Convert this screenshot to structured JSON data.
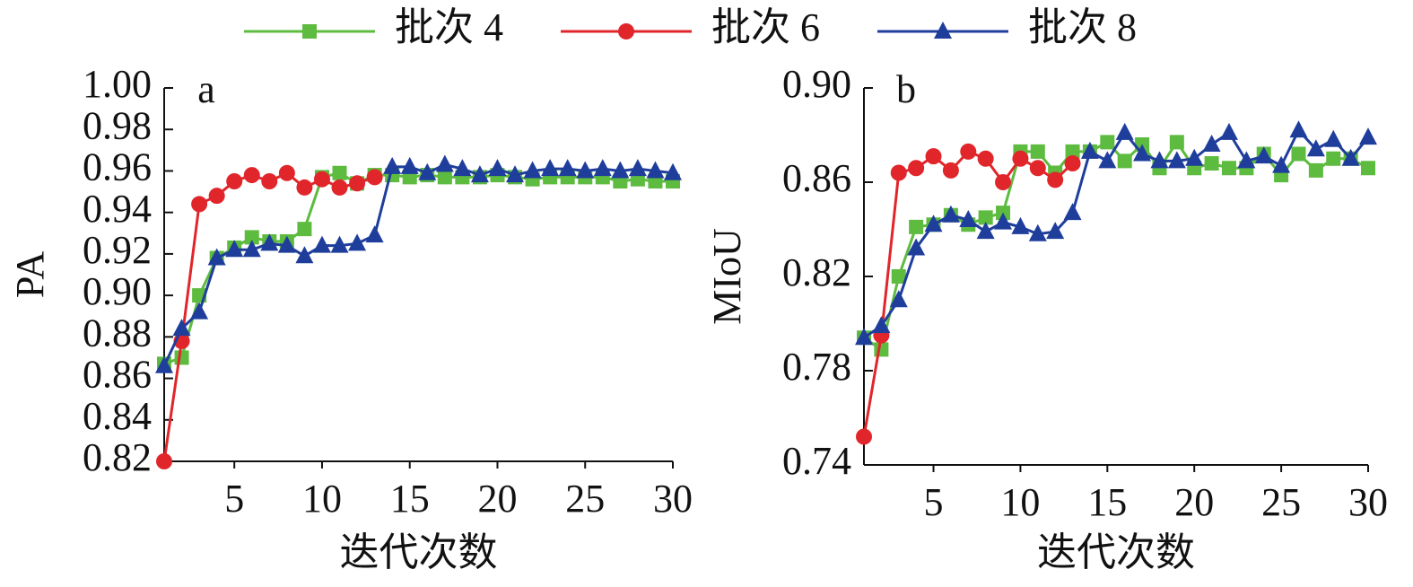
{
  "chart_data": [
    {
      "type": "line",
      "label": "a",
      "xlabel": "迭代次数",
      "ylabel": "PA",
      "x": [
        1,
        2,
        3,
        4,
        5,
        6,
        7,
        8,
        9,
        10,
        11,
        12,
        13,
        14,
        15,
        16,
        17,
        18,
        19,
        20,
        21,
        22,
        23,
        24,
        25,
        26,
        27,
        28,
        29,
        30
      ],
      "xlim": [
        1,
        30
      ],
      "xticks": [
        5,
        10,
        15,
        20,
        25,
        30
      ],
      "ylim": [
        0.82,
        1
      ],
      "yticks": [
        0.82,
        0.84,
        0.86,
        0.88,
        {
          "value": 0.9,
          "label": "0.90"
        },
        0.92,
        0.94,
        0.96,
        0.98,
        {
          "value": 1,
          "label": "1.00"
        }
      ],
      "series": [
        {
          "name": "批次 4",
          "color": "#5dbb3f",
          "marker": "square",
          "values": [
            0.867,
            0.87,
            0.9,
            0.918,
            0.923,
            0.928,
            0.926,
            0.926,
            0.932,
            0.957,
            0.959,
            0.954,
            0.958,
            0.958,
            0.957,
            0.958,
            0.957,
            0.957,
            0.957,
            0.958,
            0.957,
            0.956,
            0.957,
            0.957,
            0.957,
            0.957,
            0.955,
            0.956,
            0.955,
            0.955
          ]
        },
        {
          "name": "批次 6",
          "color": "#e0262b",
          "marker": "circle",
          "values": [
            0.82,
            0.878,
            0.944,
            0.948,
            0.955,
            0.958,
            0.955,
            0.959,
            0.952,
            0.956,
            0.952,
            0.954,
            0.957,
            null,
            null,
            null,
            null,
            null,
            null,
            null,
            null,
            null,
            null,
            null,
            null,
            null,
            null,
            null,
            null,
            null
          ]
        },
        {
          "name": "批次 8",
          "color": "#1f3e9c",
          "marker": "triangle",
          "values": [
            0.866,
            0.884,
            0.892,
            0.918,
            0.922,
            0.922,
            0.925,
            0.924,
            0.919,
            0.924,
            0.924,
            0.925,
            0.929,
            0.962,
            0.962,
            0.959,
            0.963,
            0.961,
            0.958,
            0.961,
            0.958,
            0.96,
            0.961,
            0.961,
            0.96,
            0.961,
            0.96,
            0.961,
            0.96,
            0.959
          ]
        }
      ]
    },
    {
      "type": "line",
      "label": "b",
      "xlabel": "迭代次数",
      "ylabel": "MIoU",
      "x": [
        1,
        2,
        3,
        4,
        5,
        6,
        7,
        8,
        9,
        10,
        11,
        12,
        13,
        14,
        15,
        16,
        17,
        18,
        19,
        20,
        21,
        22,
        23,
        24,
        25,
        26,
        27,
        28,
        29,
        30
      ],
      "xlim": [
        1,
        30
      ],
      "xticks": [
        5,
        10,
        15,
        20,
        25,
        30
      ],
      "ylim": [
        0.74,
        0.9
      ],
      "yticks": [
        0.74,
        0.78,
        0.82,
        0.86,
        {
          "value": 0.9,
          "label": "0.90"
        }
      ],
      "series": [
        {
          "name": "批次 4",
          "color": "#5dbb3f",
          "marker": "square",
          "values": [
            0.794,
            0.789,
            0.82,
            0.841,
            0.842,
            0.846,
            0.842,
            0.845,
            0.847,
            0.873,
            0.873,
            0.864,
            0.873,
            0.873,
            0.877,
            0.869,
            0.876,
            0.866,
            0.877,
            0.866,
            0.868,
            0.866,
            0.866,
            0.872,
            0.863,
            0.872,
            0.865,
            0.87,
            0.87,
            0.866
          ]
        },
        {
          "name": "批次 6",
          "color": "#e0262b",
          "marker": "circle",
          "values": [
            0.752,
            0.795,
            0.864,
            0.866,
            0.871,
            0.865,
            0.873,
            0.87,
            0.86,
            0.87,
            0.866,
            0.861,
            0.868,
            null,
            null,
            null,
            null,
            null,
            null,
            null,
            null,
            null,
            null,
            null,
            null,
            null,
            null,
            null,
            null,
            null
          ]
        },
        {
          "name": "批次 8",
          "color": "#1f3e9c",
          "marker": "triangle",
          "values": [
            0.794,
            0.799,
            0.81,
            0.832,
            0.842,
            0.846,
            0.844,
            0.839,
            0.843,
            0.841,
            0.838,
            0.839,
            0.847,
            0.873,
            0.869,
            0.881,
            0.872,
            0.869,
            0.869,
            0.87,
            0.876,
            0.881,
            0.869,
            0.871,
            0.867,
            0.882,
            0.874,
            0.878,
            0.87,
            0.879
          ]
        }
      ]
    }
  ]
}
